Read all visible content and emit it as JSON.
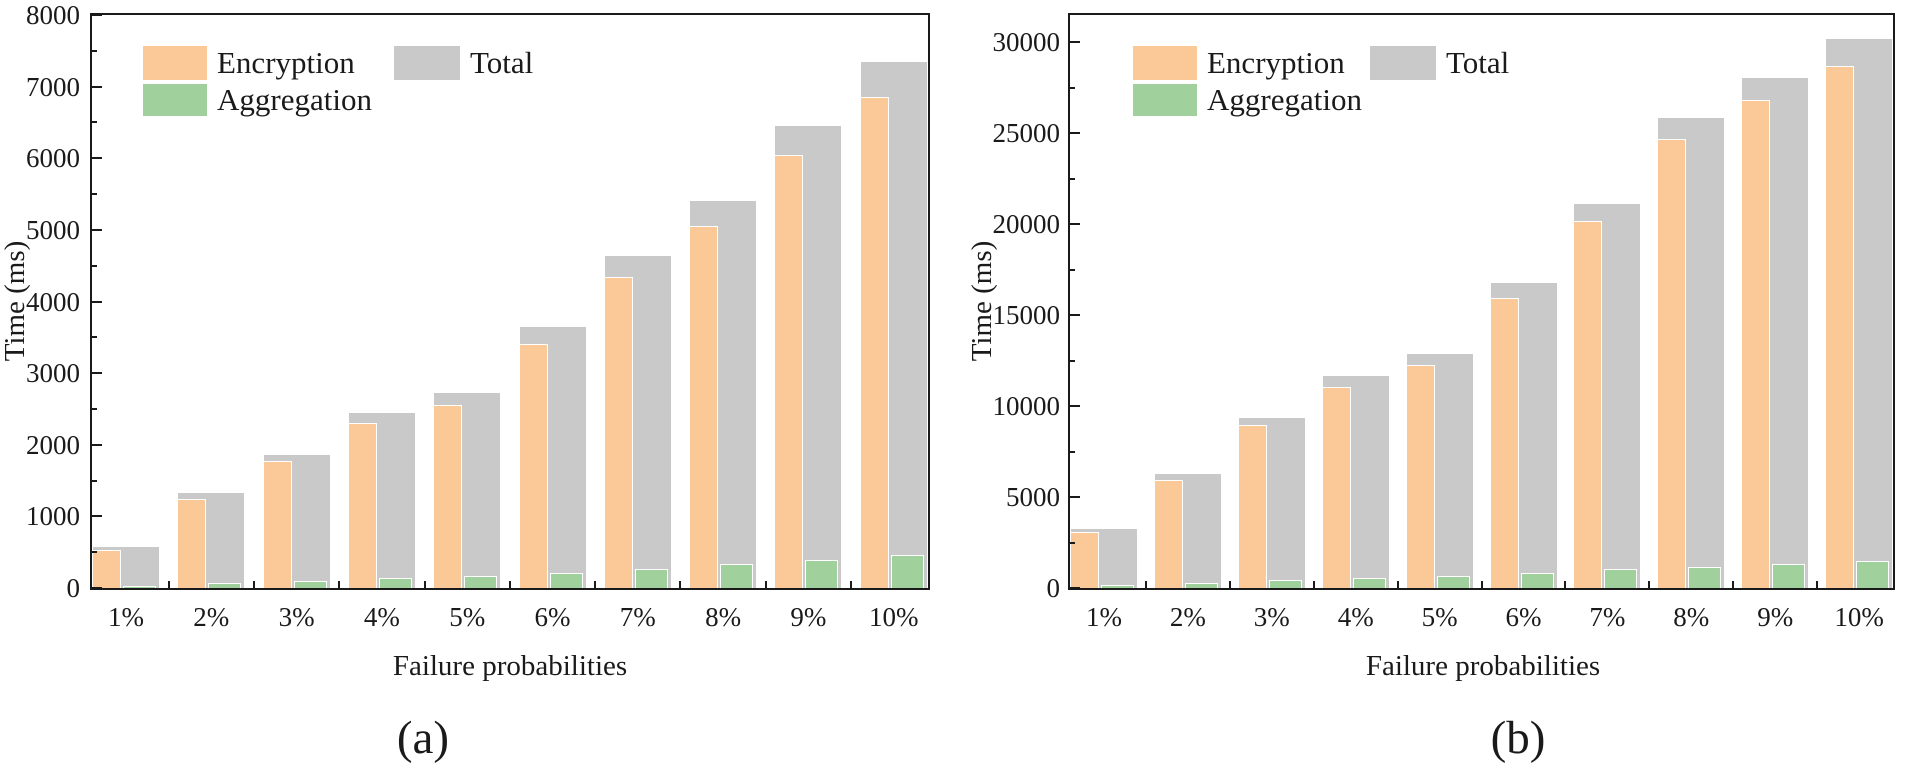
{
  "figure": {
    "background": "#ffffff",
    "axis_color": "#1a1a1a",
    "text_color": "#1a1a1a"
  },
  "chart_data": [
    {
      "id": "a",
      "type": "bar",
      "caption": "(a)",
      "xlabel": "Failure probabilities",
      "ylabel": "Time (ms)",
      "categories": [
        "1%",
        "2%",
        "3%",
        "4%",
        "5%",
        "6%",
        "7%",
        "8%",
        "9%",
        "10%"
      ],
      "series": [
        {
          "name": "Encryption",
          "color": "#FBC997",
          "values": [
            530,
            1240,
            1780,
            2300,
            2560,
            3400,
            4340,
            5050,
            6050,
            6850
          ]
        },
        {
          "name": "Aggregation",
          "color": "#A0D09C",
          "values": [
            30,
            70,
            100,
            140,
            170,
            215,
            260,
            340,
            390,
            455
          ]
        },
        {
          "name": "Total",
          "color": "#C9C9C9",
          "values": [
            580,
            1340,
            1870,
            2460,
            2740,
            3660,
            4650,
            5420,
            6470,
            7360
          ]
        }
      ],
      "ylim": [
        0,
        8000
      ],
      "yticks": [
        0,
        1000,
        2000,
        3000,
        4000,
        5000,
        6000,
        7000,
        8000
      ],
      "minor_tick_step": 500,
      "grid": false,
      "legend_position": "top-left",
      "legend_entries": [
        "Encryption",
        "Aggregation",
        "Total"
      ]
    },
    {
      "id": "b",
      "type": "bar",
      "caption": "(b)",
      "xlabel": "Failure probabilities",
      "ylabel": "Time (ms)",
      "categories": [
        "1%",
        "2%",
        "3%",
        "4%",
        "5%",
        "6%",
        "7%",
        "8%",
        "9%",
        "10%"
      ],
      "series": [
        {
          "name": "Encryption",
          "color": "#FBC997",
          "values": [
            3100,
            5950,
            8950,
            11050,
            12250,
            15950,
            20150,
            24700,
            26800,
            28700
          ]
        },
        {
          "name": "Aggregation",
          "color": "#A0D09C",
          "values": [
            170,
            300,
            440,
            560,
            650,
            830,
            1030,
            1180,
            1320,
            1480
          ]
        },
        {
          "name": "Total",
          "color": "#C9C9C9",
          "values": [
            3300,
            6320,
            9420,
            11720,
            12930,
            16820,
            21180,
            25920,
            28100,
            30250
          ]
        }
      ],
      "ylim": [
        0,
        31500
      ],
      "yticks": [
        0,
        5000,
        10000,
        15000,
        20000,
        25000,
        30000
      ],
      "minor_tick_step": 2500,
      "grid": false,
      "legend_position": "top-left",
      "legend_entries": [
        "Encryption",
        "Aggregation",
        "Total"
      ]
    }
  ]
}
